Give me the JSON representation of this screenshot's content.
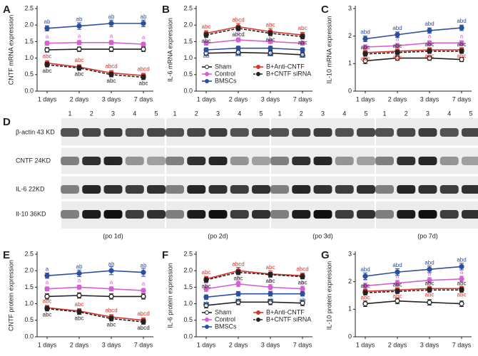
{
  "chart_data": [
    {
      "type": "line",
      "label": "A",
      "ylabel": "CNTF mRNA expression",
      "categories": [
        "1 days",
        "2 days",
        "3 days",
        "7 days"
      ],
      "ylim": [
        0,
        2.5
      ],
      "yticks": [
        {
          "value": 0,
          "label": "0.0"
        },
        0.5,
        {
          "value": 1,
          "label": "1.0"
        },
        1.5,
        {
          "value": 2,
          "label": "2.0"
        },
        2.5
      ],
      "series": [
        {
          "name": "Sham",
          "color": "#222222",
          "marker": "open-circle",
          "values": [
            1.25,
            1.27,
            1.27,
            1.27
          ],
          "errors": [
            0.07,
            0.07,
            0.07,
            0.07
          ]
        },
        {
          "name": "Control",
          "color": "#d65fd1",
          "marker": "circle",
          "values": [
            1.45,
            1.47,
            1.47,
            1.42
          ],
          "errors": [
            0.06,
            0.06,
            0.06,
            0.06
          ],
          "point_labels": [
            "a",
            "a",
            "a",
            "a"
          ],
          "label_side": "above",
          "label_color": "#d65fd1"
        },
        {
          "name": "BMSCs",
          "color": "#2e4f9e",
          "marker": "circle",
          "values": [
            1.9,
            1.97,
            2.05,
            2.05
          ],
          "errors": [
            0.08,
            0.1,
            0.1,
            0.1
          ],
          "point_labels": [
            "ab",
            "ab",
            "ab",
            "ab"
          ],
          "label_side": "above",
          "label_color": "#2e4f9e"
        },
        {
          "name": "B+Anti-CNTF",
          "color": "#d9342b",
          "marker": "circle",
          "values": [
            0.85,
            0.73,
            0.55,
            0.47
          ],
          "errors": [
            0.07,
            0.07,
            0.07,
            0.07
          ],
          "point_labels": [
            "abc",
            "abc",
            "abcd",
            "abcd"
          ],
          "label_side": "above",
          "label_color": "#d9342b"
        },
        {
          "name": "B+CNTF siRNA",
          "color": "#222222",
          "marker": "circle",
          "dash": true,
          "values": [
            0.8,
            0.7,
            0.5,
            0.42
          ],
          "errors": [
            0.07,
            0.07,
            0.07,
            0.07
          ],
          "point_labels": [
            "abc",
            "abc",
            "abc",
            "abc"
          ],
          "label_side": "below",
          "label_color": "#222222"
        }
      ]
    },
    {
      "type": "line",
      "label": "B",
      "ylabel": "IL-6 mRNA expression",
      "categories": [
        "1 days",
        "2 days",
        "3 days",
        "7 days"
      ],
      "ylim": [
        0,
        2.5
      ],
      "yticks": [
        {
          "value": 0,
          "label": "0.0"
        },
        0.5,
        {
          "value": 1,
          "label": "1.0"
        },
        1.5,
        {
          "value": 2,
          "label": "2.0"
        },
        2.5
      ],
      "legend": "lower left",
      "series": [
        {
          "name": "Sham",
          "color": "#222222",
          "marker": "open-circle",
          "values": [
            1.15,
            1.17,
            1.15,
            1.1
          ],
          "errors": [
            0.07,
            0.07,
            0.07,
            0.07
          ]
        },
        {
          "name": "Control",
          "color": "#d65fd1",
          "marker": "circle",
          "values": [
            1.45,
            1.55,
            1.5,
            1.45
          ],
          "errors": [
            0.06,
            0.06,
            0.06,
            0.06
          ],
          "point_labels": [
            "a",
            "a",
            "a",
            "a"
          ],
          "label_side": "above",
          "label_color": "#d65fd1"
        },
        {
          "name": "BMSCs",
          "color": "#2e4f9e",
          "marker": "circle",
          "values": [
            1.25,
            1.3,
            1.3,
            1.25
          ],
          "errors": [
            0.06,
            0.06,
            0.06,
            0.06
          ],
          "point_labels": [
            "ab",
            "ab",
            "ab",
            "ab"
          ],
          "label_side": "below",
          "label_color": "#2e4f9e"
        },
        {
          "name": "B+Anti-CNTF",
          "color": "#d9342b",
          "marker": "circle",
          "values": [
            1.75,
            1.95,
            1.8,
            1.7
          ],
          "errors": [
            0.08,
            0.1,
            0.1,
            0.08
          ],
          "point_labels": [
            "abc",
            "abcd",
            "abc",
            "abc"
          ],
          "label_side": "above",
          "label_color": "#d9342b"
        },
        {
          "name": "B+CNTF siRNA",
          "color": "#222222",
          "marker": "circle",
          "dash": true,
          "values": [
            1.7,
            1.9,
            1.75,
            1.65
          ],
          "errors": [
            0.07,
            0.07,
            0.07,
            0.07
          ],
          "point_labels": [
            "abc",
            "abcd",
            "abc",
            "abc"
          ],
          "label_side": "below",
          "label_color": "#222222"
        }
      ]
    },
    {
      "type": "line",
      "label": "C",
      "ylabel": "IL-10 mRNA expression",
      "categories": [
        "1 days",
        "2 days",
        "3 days",
        "7 days"
      ],
      "ylim": [
        0,
        3
      ],
      "yticks": [
        0,
        1,
        2,
        3
      ],
      "series": [
        {
          "name": "Sham",
          "color": "#222222",
          "marker": "open-circle",
          "values": [
            1.1,
            1.2,
            1.2,
            1.15
          ],
          "errors": [
            0.1,
            0.08,
            0.08,
            0.08
          ]
        },
        {
          "name": "Control",
          "color": "#d65fd1",
          "marker": "circle",
          "values": [
            1.6,
            1.65,
            1.75,
            1.75
          ],
          "errors": [
            0.08,
            0.08,
            0.08,
            0.08
          ],
          "point_labels": [
            "a",
            "a",
            "a",
            "a"
          ],
          "label_side": "above",
          "label_color": "#d65fd1"
        },
        {
          "name": "BMSCs",
          "color": "#2e4f9e",
          "marker": "circle",
          "values": [
            1.9,
            2.05,
            2.2,
            2.3
          ],
          "errors": [
            0.1,
            0.1,
            0.1,
            0.1
          ],
          "point_labels": [
            "abd",
            "abd",
            "abd",
            "abd"
          ],
          "label_side": "above",
          "label_color": "#2e4f9e"
        },
        {
          "name": "B+Anti-CNTF",
          "color": "#d9342b",
          "marker": "circle",
          "values": [
            1.4,
            1.45,
            1.5,
            1.5
          ],
          "errors": [
            0.08,
            0.08,
            0.08,
            0.08
          ],
          "point_labels": [
            "abc",
            "abc",
            "abc",
            "abc"
          ],
          "label_side": "below",
          "label_color": "#d9342b"
        },
        {
          "name": "B+CNTF siRNA",
          "color": "#222222",
          "marker": "circle",
          "dash": true,
          "values": [
            1.35,
            1.4,
            1.45,
            1.45
          ],
          "errors": [
            0.08,
            0.08,
            0.08,
            0.08
          ],
          "point_labels": [
            "abc",
            "abc",
            "abc",
            "abc"
          ],
          "label_side": "above",
          "label_color": "#222222"
        }
      ]
    },
    {
      "type": "line",
      "label": "E",
      "ylabel": "CNTF protein expression",
      "categories": [
        "1 days",
        "2 days",
        "3 days",
        "7 days"
      ],
      "ylim": [
        0,
        2.5
      ],
      "yticks": [
        {
          "value": 0,
          "label": "0.0"
        },
        0.5,
        {
          "value": 1,
          "label": "1.0"
        },
        1.5,
        {
          "value": 2,
          "label": "2.0"
        },
        2.5
      ],
      "series": [
        {
          "name": "Sham",
          "color": "#222222",
          "marker": "open-circle",
          "values": [
            1.22,
            1.25,
            1.22,
            1.22
          ],
          "errors": [
            0.08,
            0.08,
            0.08,
            0.08
          ]
        },
        {
          "name": "Control",
          "color": "#d65fd1",
          "marker": "circle",
          "values": [
            1.45,
            1.5,
            1.45,
            1.4
          ],
          "errors": [
            0.06,
            0.06,
            0.06,
            0.06
          ],
          "point_labels": [
            "a",
            "a",
            "a",
            "a"
          ],
          "label_side": "above",
          "label_color": "#d65fd1"
        },
        {
          "name": "BMSCs",
          "color": "#2e4f9e",
          "marker": "circle",
          "values": [
            1.85,
            1.92,
            2.0,
            1.95
          ],
          "errors": [
            0.08,
            0.1,
            0.12,
            0.12
          ],
          "point_labels": [
            "a",
            "ab",
            "ab",
            "ab"
          ],
          "label_side": "above",
          "label_color": "#2e4f9e"
        },
        {
          "name": "B+Anti-CNTF",
          "color": "#d9342b",
          "marker": "circle",
          "values": [
            0.88,
            0.78,
            0.6,
            0.5
          ],
          "errors": [
            0.07,
            0.07,
            0.07,
            0.07
          ],
          "point_labels": [
            "abc",
            "abc",
            "abcd",
            "abcd"
          ],
          "label_side": "above",
          "label_color": "#d9342b"
        },
        {
          "name": "B+CNTF siRNA",
          "color": "#222222",
          "marker": "circle",
          "dash": true,
          "values": [
            0.85,
            0.75,
            0.55,
            0.45
          ],
          "errors": [
            0.07,
            0.07,
            0.07,
            0.07
          ],
          "point_labels": [
            "abc",
            "abc",
            "abc",
            "abcd"
          ],
          "label_side": "below",
          "label_color": "#222222"
        }
      ]
    },
    {
      "type": "line",
      "label": "F",
      "ylabel": "IL-6 protein expression",
      "categories": [
        "1 days",
        "2 days",
        "3 days",
        "7 days"
      ],
      "ylim": [
        0,
        2.5
      ],
      "yticks": [
        {
          "value": 0,
          "label": "0.0"
        },
        0.5,
        {
          "value": 1,
          "label": "1.0"
        },
        1.5,
        {
          "value": 2,
          "label": "2.0"
        },
        2.5
      ],
      "legend": "lower left",
      "series": [
        {
          "name": "Sham",
          "color": "#222222",
          "marker": "open-circle",
          "values": [
            0.95,
            1.05,
            1.05,
            1.02
          ],
          "errors": [
            0.08,
            0.08,
            0.08,
            0.08
          ]
        },
        {
          "name": "Control",
          "color": "#d65fd1",
          "marker": "circle",
          "values": [
            1.45,
            1.6,
            1.5,
            1.45
          ],
          "errors": [
            0.08,
            0.08,
            0.08,
            0.08
          ],
          "point_labels": [
            "a",
            "a",
            "a",
            "a"
          ],
          "label_side": "above",
          "label_color": "#d65fd1"
        },
        {
          "name": "BMSCs",
          "color": "#2e4f9e",
          "marker": "circle",
          "values": [
            1.2,
            1.3,
            1.3,
            1.3
          ],
          "errors": [
            0.07,
            0.07,
            0.07,
            0.07
          ],
          "point_labels": [
            "ab",
            "ab",
            "ab",
            "ab"
          ],
          "label_side": "below",
          "label_color": "#2e4f9e"
        },
        {
          "name": "B+Anti-CNTF",
          "color": "#d9342b",
          "marker": "circle",
          "values": [
            1.75,
            2.0,
            1.9,
            1.85
          ],
          "errors": [
            0.08,
            0.1,
            0.1,
            0.08
          ],
          "point_labels": [
            "abc",
            "abcd",
            "abc",
            "abcd"
          ],
          "label_side": "above",
          "label_color": "#d9342b"
        },
        {
          "name": "B+CNTF siRNA",
          "color": "#222222",
          "marker": "circle",
          "dash": true,
          "values": [
            1.72,
            1.95,
            1.88,
            1.82
          ],
          "errors": [
            0.07,
            0.07,
            0.07,
            0.07
          ],
          "point_labels": [
            "abc",
            "abc",
            "abc",
            "abc"
          ],
          "label_side": "below",
          "label_color": "#222222"
        }
      ]
    },
    {
      "type": "line",
      "label": "G",
      "ylabel": "IL-10 protein expression",
      "categories": [
        "1 days",
        "2 days",
        "3 days",
        "7 days"
      ],
      "ylim": [
        0,
        3
      ],
      "yticks": [
        0,
        1,
        2,
        3
      ],
      "series": [
        {
          "name": "Sham",
          "color": "#222222",
          "marker": "open-circle",
          "values": [
            1.2,
            1.3,
            1.25,
            1.2
          ],
          "errors": [
            0.1,
            0.1,
            0.1,
            0.1
          ]
        },
        {
          "name": "Control",
          "color": "#d65fd1",
          "marker": "circle",
          "values": [
            1.85,
            1.95,
            2.05,
            2.1
          ],
          "errors": [
            0.1,
            0.1,
            0.1,
            0.1
          ],
          "point_labels": [
            "a",
            "a",
            "a",
            "a"
          ],
          "label_side": "above",
          "label_color": "#d65fd1"
        },
        {
          "name": "BMSCs",
          "color": "#2e4f9e",
          "marker": "circle",
          "values": [
            2.2,
            2.35,
            2.45,
            2.55
          ],
          "errors": [
            0.12,
            0.12,
            0.12,
            0.12
          ],
          "point_labels": [
            "abd",
            "abd",
            "abd",
            "abd"
          ],
          "label_side": "above",
          "label_color": "#2e4f9e"
        },
        {
          "name": "B+Anti-CNTF",
          "color": "#d9342b",
          "marker": "circle",
          "values": [
            1.65,
            1.7,
            1.75,
            1.75
          ],
          "errors": [
            0.08,
            0.08,
            0.08,
            0.08
          ],
          "point_labels": [
            "abc",
            "abc",
            "abc",
            "abc"
          ],
          "label_side": "below",
          "label_color": "#d9342b"
        },
        {
          "name": "B+CNTF siRNA",
          "color": "#222222",
          "marker": "circle",
          "dash": true,
          "values": [
            1.6,
            1.65,
            1.7,
            1.7
          ],
          "errors": [
            0.08,
            0.08,
            0.08,
            0.08
          ],
          "point_labels": [
            "abc",
            "abc",
            "abc",
            "abc"
          ],
          "label_side": "above",
          "label_color": "#222222"
        }
      ]
    }
  ],
  "blot": {
    "label": "D",
    "lanes": [
      "1",
      "2",
      "3",
      "4",
      "5"
    ],
    "rows": [
      "β-actin 43 KD",
      "CNTF 24KD",
      "IL-6 22KD",
      "Il-10 36KD"
    ],
    "panels": [
      "(po 1d)",
      "(po 2d)",
      "(po 3d)",
      "(po 7d)"
    ]
  }
}
